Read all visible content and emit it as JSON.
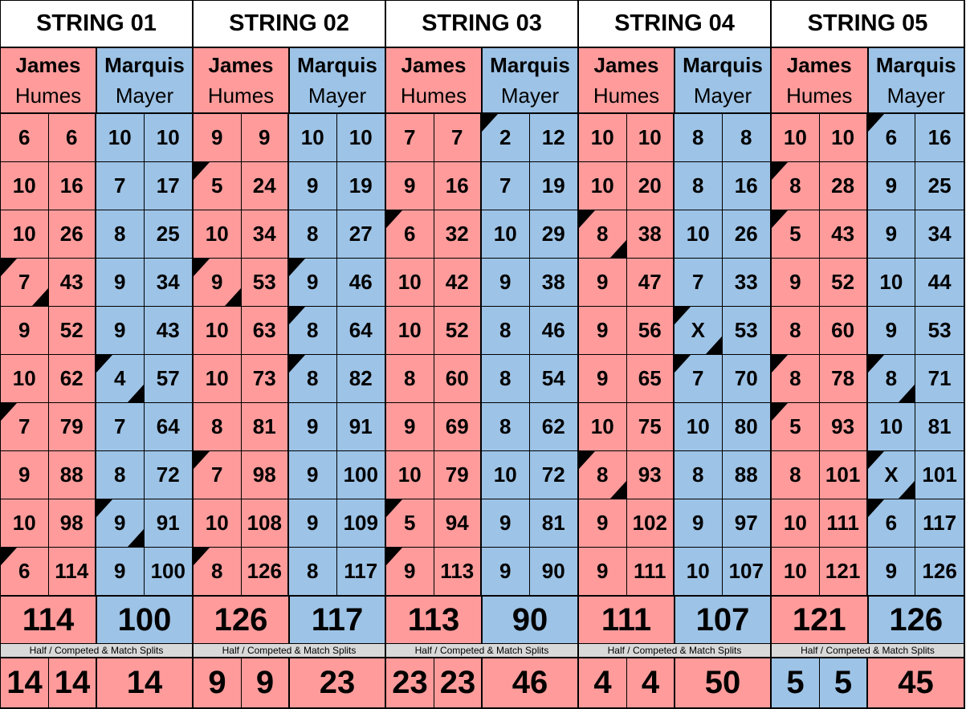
{
  "colors": {
    "player1": "#ff9b9b",
    "player2": "#9dc3e6",
    "label_bg": "#d9d9d9"
  },
  "split_label": "Half / Competed & Match Splits",
  "strings": [
    {
      "title": "STRING 01",
      "players": [
        {
          "first": "James",
          "last": "Humes"
        },
        {
          "first": "Marquis",
          "last": "Mayer"
        }
      ],
      "frames": [
        [
          [
            "6",
            "6",
            ""
          ],
          [
            "10",
            "10",
            ""
          ]
        ],
        [
          [
            "10",
            "16",
            ""
          ],
          [
            "7",
            "17",
            ""
          ]
        ],
        [
          [
            "10",
            "26",
            ""
          ],
          [
            "8",
            "25",
            ""
          ]
        ],
        [
          [
            "7",
            "43",
            "both"
          ],
          [
            "9",
            "34",
            ""
          ]
        ],
        [
          [
            "9",
            "52",
            ""
          ],
          [
            "9",
            "43",
            ""
          ]
        ],
        [
          [
            "10",
            "62",
            ""
          ],
          [
            "4",
            "57",
            "both"
          ]
        ],
        [
          [
            "7",
            "79",
            "tl"
          ],
          [
            "7",
            "64",
            ""
          ]
        ],
        [
          [
            "9",
            "88",
            ""
          ],
          [
            "8",
            "72",
            ""
          ]
        ],
        [
          [
            "10",
            "98",
            ""
          ],
          [
            "9",
            "91",
            "both"
          ]
        ],
        [
          [
            "6",
            "114",
            "tl"
          ],
          [
            "9",
            "100",
            ""
          ]
        ]
      ],
      "totals": [
        "114",
        "100"
      ],
      "splits": [
        {
          "value": "14",
          "color": "pink"
        },
        {
          "value": "14",
          "color": "pink"
        },
        {
          "value": "14",
          "color": "pink"
        }
      ]
    },
    {
      "title": "STRING 02",
      "players": [
        {
          "first": "James",
          "last": "Humes"
        },
        {
          "first": "Marquis",
          "last": "Mayer"
        }
      ],
      "frames": [
        [
          [
            "9",
            "9",
            ""
          ],
          [
            "10",
            "10",
            ""
          ]
        ],
        [
          [
            "5",
            "24",
            "tl"
          ],
          [
            "9",
            "19",
            ""
          ]
        ],
        [
          [
            "10",
            "34",
            ""
          ],
          [
            "8",
            "27",
            ""
          ]
        ],
        [
          [
            "9",
            "53",
            "both"
          ],
          [
            "9",
            "46",
            "tl"
          ]
        ],
        [
          [
            "10",
            "63",
            ""
          ],
          [
            "8",
            "64",
            "tl"
          ]
        ],
        [
          [
            "10",
            "73",
            ""
          ],
          [
            "8",
            "82",
            "tl"
          ]
        ],
        [
          [
            "8",
            "81",
            ""
          ],
          [
            "9",
            "91",
            ""
          ]
        ],
        [
          [
            "7",
            "98",
            "tl"
          ],
          [
            "9",
            "100",
            ""
          ]
        ],
        [
          [
            "10",
            "108",
            ""
          ],
          [
            "9",
            "109",
            ""
          ]
        ],
        [
          [
            "8",
            "126",
            "tl"
          ],
          [
            "8",
            "117",
            ""
          ]
        ]
      ],
      "totals": [
        "126",
        "117"
      ],
      "splits": [
        {
          "value": "9",
          "color": "pink"
        },
        {
          "value": "9",
          "color": "pink"
        },
        {
          "value": "23",
          "color": "pink"
        }
      ]
    },
    {
      "title": "STRING 03",
      "players": [
        {
          "first": "James",
          "last": "Humes"
        },
        {
          "first": "Marquis",
          "last": "Mayer"
        }
      ],
      "frames": [
        [
          [
            "7",
            "7",
            ""
          ],
          [
            "2",
            "12",
            "tl"
          ]
        ],
        [
          [
            "9",
            "16",
            ""
          ],
          [
            "7",
            "19",
            ""
          ]
        ],
        [
          [
            "6",
            "32",
            "tl"
          ],
          [
            "10",
            "29",
            ""
          ]
        ],
        [
          [
            "10",
            "42",
            ""
          ],
          [
            "9",
            "38",
            ""
          ]
        ],
        [
          [
            "10",
            "52",
            ""
          ],
          [
            "8",
            "46",
            ""
          ]
        ],
        [
          [
            "8",
            "60",
            ""
          ],
          [
            "8",
            "54",
            ""
          ]
        ],
        [
          [
            "9",
            "69",
            ""
          ],
          [
            "8",
            "62",
            ""
          ]
        ],
        [
          [
            "10",
            "79",
            ""
          ],
          [
            "10",
            "72",
            ""
          ]
        ],
        [
          [
            "5",
            "94",
            "tl"
          ],
          [
            "9",
            "81",
            ""
          ]
        ],
        [
          [
            "9",
            "113",
            "tl"
          ],
          [
            "9",
            "90",
            ""
          ]
        ]
      ],
      "totals": [
        "113",
        "90"
      ],
      "splits": [
        {
          "value": "23",
          "color": "pink"
        },
        {
          "value": "23",
          "color": "pink"
        },
        {
          "value": "46",
          "color": "pink"
        }
      ]
    },
    {
      "title": "STRING 04",
      "players": [
        {
          "first": "James",
          "last": "Humes"
        },
        {
          "first": "Marquis",
          "last": "Mayer"
        }
      ],
      "frames": [
        [
          [
            "10",
            "10",
            ""
          ],
          [
            "8",
            "8",
            ""
          ]
        ],
        [
          [
            "10",
            "20",
            ""
          ],
          [
            "8",
            "16",
            ""
          ]
        ],
        [
          [
            "8",
            "38",
            "both"
          ],
          [
            "10",
            "26",
            ""
          ]
        ],
        [
          [
            "9",
            "47",
            ""
          ],
          [
            "7",
            "33",
            ""
          ]
        ],
        [
          [
            "9",
            "56",
            ""
          ],
          [
            "X",
            "53",
            "both"
          ]
        ],
        [
          [
            "9",
            "65",
            ""
          ],
          [
            "7",
            "70",
            "tl"
          ]
        ],
        [
          [
            "10",
            "75",
            ""
          ],
          [
            "10",
            "80",
            ""
          ]
        ],
        [
          [
            "8",
            "93",
            "both"
          ],
          [
            "8",
            "88",
            ""
          ]
        ],
        [
          [
            "9",
            "102",
            ""
          ],
          [
            "9",
            "97",
            ""
          ]
        ],
        [
          [
            "9",
            "111",
            ""
          ],
          [
            "10",
            "107",
            ""
          ]
        ]
      ],
      "totals": [
        "111",
        "107"
      ],
      "splits": [
        {
          "value": "4",
          "color": "pink"
        },
        {
          "value": "4",
          "color": "pink"
        },
        {
          "value": "50",
          "color": "pink"
        }
      ]
    },
    {
      "title": "STRING 05",
      "players": [
        {
          "first": "James",
          "last": "Humes"
        },
        {
          "first": "Marquis",
          "last": "Mayer"
        }
      ],
      "frames": [
        [
          [
            "10",
            "10",
            ""
          ],
          [
            "6",
            "16",
            "tl"
          ]
        ],
        [
          [
            "8",
            "28",
            "tl"
          ],
          [
            "9",
            "25",
            ""
          ]
        ],
        [
          [
            "5",
            "43",
            "tl"
          ],
          [
            "9",
            "34",
            ""
          ]
        ],
        [
          [
            "9",
            "52",
            ""
          ],
          [
            "10",
            "44",
            ""
          ]
        ],
        [
          [
            "8",
            "60",
            ""
          ],
          [
            "9",
            "53",
            ""
          ]
        ],
        [
          [
            "8",
            "78",
            "tl"
          ],
          [
            "8",
            "71",
            "both"
          ]
        ],
        [
          [
            "5",
            "93",
            "tl"
          ],
          [
            "10",
            "81",
            ""
          ]
        ],
        [
          [
            "8",
            "101",
            ""
          ],
          [
            "X",
            "101",
            "both"
          ]
        ],
        [
          [
            "10",
            "111",
            ""
          ],
          [
            "6",
            "117",
            "tl"
          ]
        ],
        [
          [
            "10",
            "121",
            ""
          ],
          [
            "9",
            "126",
            ""
          ]
        ]
      ],
      "totals": [
        "121",
        "126"
      ],
      "splits": [
        {
          "value": "5",
          "color": "blue"
        },
        {
          "value": "5",
          "color": "blue"
        },
        {
          "value": "45",
          "color": "pink"
        }
      ]
    }
  ]
}
